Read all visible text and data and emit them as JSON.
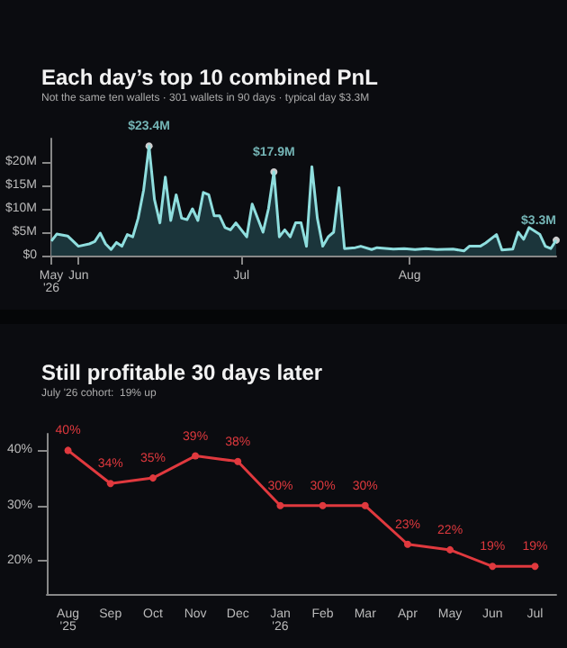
{
  "chart_data": [
    {
      "type": "area",
      "title": "Each day’s top 10 combined PnL",
      "subtitle": "Not the same ten wallets · 301 wallets in 90 days · typical day $3.3M",
      "color": "#8fdede",
      "x": [
        "2026-05-27",
        "2026-05-28",
        "2026-05-30",
        "2026-06-01",
        "2026-06-03",
        "2026-06-04",
        "2026-06-05",
        "2026-06-06",
        "2026-06-07",
        "2026-06-08",
        "2026-06-09",
        "2026-06-10",
        "2026-06-11",
        "2026-06-12",
        "2026-06-13",
        "2026-06-14",
        "2026-06-15",
        "2026-06-16",
        "2026-06-17",
        "2026-06-18",
        "2026-06-19",
        "2026-06-20",
        "2026-06-21",
        "2026-06-22",
        "2026-06-23",
        "2026-06-24",
        "2026-06-25",
        "2026-06-26",
        "2026-06-27",
        "2026-06-28",
        "2026-06-29",
        "2026-06-30",
        "2026-07-02",
        "2026-07-03",
        "2026-07-05",
        "2026-07-06",
        "2026-07-07",
        "2026-07-08",
        "2026-07-09",
        "2026-07-10",
        "2026-07-11",
        "2026-07-12",
        "2026-07-13",
        "2026-07-14",
        "2026-07-15",
        "2026-07-16",
        "2026-07-17",
        "2026-07-18",
        "2026-07-19",
        "2026-07-20",
        "2026-07-22",
        "2026-07-23",
        "2026-07-25",
        "2026-07-26",
        "2026-07-29",
        "2026-07-31",
        "2026-08-02",
        "2026-08-04",
        "2026-08-06",
        "2026-08-09",
        "2026-08-11",
        "2026-08-12",
        "2026-08-14",
        "2026-08-15",
        "2026-08-17",
        "2026-08-18",
        "2026-08-20",
        "2026-08-21",
        "2026-08-22",
        "2026-08-23",
        "2026-08-25",
        "2026-08-26",
        "2026-08-27",
        "2026-08-28"
      ],
      "values": [
        3.1,
        4.6,
        4.2,
        2.0,
        2.5,
        3.0,
        4.8,
        2.5,
        1.3,
        2.8,
        2.0,
        4.5,
        4.0,
        8,
        14,
        23.4,
        12,
        7,
        16.8,
        7.5,
        13,
        8,
        7.7,
        10,
        7.5,
        13.5,
        13,
        8.5,
        8.5,
        6,
        5.5,
        7,
        4,
        11,
        5,
        10,
        17.9,
        4,
        5.5,
        4,
        7,
        7,
        2,
        19,
        8,
        2,
        4,
        5,
        14.5,
        1.5,
        1.7,
        2,
        1.3,
        1.7,
        1.4,
        1.5,
        1.3,
        1.5,
        1.3,
        1.4,
        1.0,
        2,
        2,
        2.7,
        4.5,
        1.2,
        1.4,
        5,
        3.5,
        6,
        4.5,
        2,
        1.5,
        3.3
      ],
      "xlim": [
        "2026-05-27",
        "2026-08-28"
      ],
      "xticks": [
        {
          "value": "2026-05-27",
          "label": "May\n'26"
        },
        {
          "value": "2026-06-01",
          "label": "Jun"
        },
        {
          "value": "2026-07-01",
          "label": "Jul"
        },
        {
          "value": "2026-08-01",
          "label": "Aug"
        }
      ],
      "ylim": [
        0,
        25
      ],
      "yticks": [
        {
          "value": 0,
          "label": "$0"
        },
        {
          "value": 5,
          "label": "$5M"
        },
        {
          "value": 10,
          "label": "$10M"
        },
        {
          "value": 15,
          "label": "$15M"
        },
        {
          "value": 20,
          "label": "$20M"
        }
      ],
      "annotations": [
        {
          "text": "$23.4M",
          "x": "2026-06-14",
          "y": 23.4
        },
        {
          "text": "$17.9M",
          "x": "2026-07-07",
          "y": 17.9
        },
        {
          "text": "$3.3M",
          "x": "2026-08-28",
          "y": 3.3
        }
      ]
    },
    {
      "type": "line",
      "title": "Still profitable 30 days later",
      "subtitle": "July '26 cohort:  19% up",
      "color": "#e0393e",
      "marker": "circle",
      "categories": [
        "Aug\n'25",
        "Sep",
        "Oct",
        "Nov",
        "Dec",
        "Jan\n'26",
        "Feb",
        "Mar",
        "Apr",
        "May",
        "Jun",
        "Jul"
      ],
      "values": [
        40,
        34,
        35,
        39,
        38,
        30,
        30,
        30,
        23,
        22,
        19,
        19
      ],
      "value_labels": [
        "40%",
        "34%",
        "35%",
        "39%",
        "38%",
        "30%",
        "30%",
        "30%",
        "23%",
        "22%",
        "19%",
        "19%"
      ],
      "ylim": [
        14,
        43
      ],
      "yticks": [
        {
          "value": 20,
          "label": "20%"
        },
        {
          "value": 30,
          "label": "30%"
        },
        {
          "value": 40,
          "label": "40%"
        }
      ]
    }
  ]
}
